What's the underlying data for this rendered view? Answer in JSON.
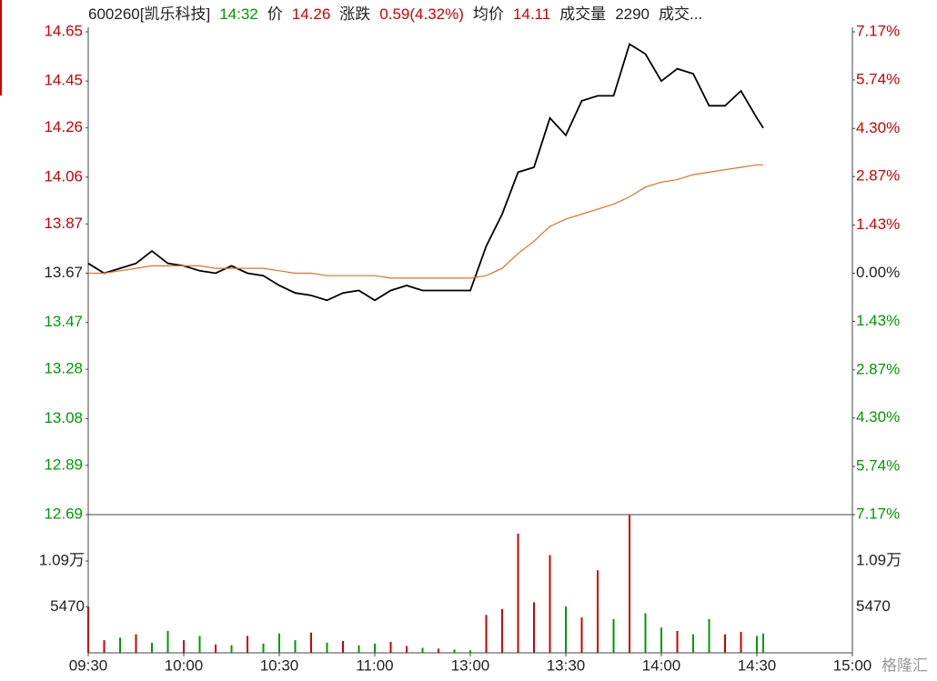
{
  "chart_data": {
    "type": "line",
    "header": [
      {
        "text": "600260[凯乐科技]",
        "color": "#222222"
      },
      {
        "text": "14:32",
        "color": "#009900"
      },
      {
        "text": "价",
        "color": "#222222"
      },
      {
        "text": "14.26",
        "color": "#cc0000"
      },
      {
        "text": "涨跌",
        "color": "#222222"
      },
      {
        "text": "0.59(4.32%)",
        "color": "#cc0000"
      },
      {
        "text": "均价",
        "color": "#222222"
      },
      {
        "text": "14.11",
        "color": "#cc0000"
      },
      {
        "text": "成交量",
        "color": "#222222"
      },
      {
        "text": "2290",
        "color": "#222222"
      },
      {
        "text": "成交...",
        "color": "#222222"
      }
    ],
    "x": [
      "09:30",
      "09:35",
      "09:40",
      "09:45",
      "09:50",
      "09:55",
      "10:00",
      "10:05",
      "10:10",
      "10:15",
      "10:20",
      "10:25",
      "10:30",
      "10:35",
      "10:40",
      "10:45",
      "10:50",
      "10:55",
      "11:00",
      "11:05",
      "11:10",
      "11:15",
      "11:20",
      "11:25",
      "11:30",
      "13:05",
      "13:10",
      "13:15",
      "13:20",
      "13:25",
      "13:30",
      "13:35",
      "13:40",
      "13:45",
      "13:50",
      "13:55",
      "14:00",
      "14:05",
      "14:10",
      "14:15",
      "14:20",
      "14:25",
      "14:30",
      "14:32"
    ],
    "series": [
      {
        "color": "#000000",
        "values": [
          13.71,
          13.67,
          13.69,
          13.71,
          13.76,
          13.71,
          13.7,
          13.68,
          13.67,
          13.7,
          13.67,
          13.66,
          13.62,
          13.59,
          13.58,
          13.56,
          13.59,
          13.6,
          13.56,
          13.6,
          13.62,
          13.6,
          13.6,
          13.6,
          13.6,
          13.78,
          13.91,
          14.08,
          14.1,
          14.3,
          14.23,
          14.37,
          14.39,
          14.39,
          14.6,
          14.56,
          14.45,
          14.5,
          14.48,
          14.35,
          14.35,
          14.41,
          14.3,
          14.26
        ]
      },
      {
        "color": "#e07020",
        "values": [
          13.67,
          13.67,
          13.68,
          13.69,
          13.7,
          13.7,
          13.7,
          13.7,
          13.69,
          13.69,
          13.69,
          13.69,
          13.68,
          13.67,
          13.67,
          13.66,
          13.66,
          13.66,
          13.66,
          13.65,
          13.65,
          13.65,
          13.65,
          13.65,
          13.65,
          13.66,
          13.69,
          13.75,
          13.8,
          13.86,
          13.89,
          13.91,
          13.93,
          13.95,
          13.98,
          14.02,
          14.04,
          14.05,
          14.07,
          14.08,
          14.09,
          14.1,
          14.11,
          14.11
        ]
      }
    ],
    "xlim": [
      "09:30",
      "15:00"
    ],
    "xticks": [
      "09:30",
      "10:00",
      "10:30",
      "11:00",
      "13:00",
      "13:30",
      "14:00",
      "14:30",
      "15:00"
    ],
    "ylim": [
      12.69,
      14.65
    ],
    "yticks": [
      14.65,
      14.45,
      14.26,
      14.06,
      13.87,
      13.67,
      13.47,
      13.28,
      13.08,
      12.89,
      12.69
    ],
    "y2lim": [
      -7.17,
      7.17
    ],
    "y2ticks": [
      {
        "value": 7.17,
        "label": "7.17%"
      },
      {
        "value": 5.74,
        "label": "5.74%"
      },
      {
        "value": 4.3,
        "label": "4.30%"
      },
      {
        "value": 2.87,
        "label": "2.87%"
      },
      {
        "value": 1.43,
        "label": "1.43%"
      },
      {
        "value": 0,
        "label": "0.00%"
      },
      {
        "value": -1.43,
        "label": "1.43%"
      },
      {
        "value": -2.87,
        "label": "2.87%"
      },
      {
        "value": -4.3,
        "label": "4.30%"
      },
      {
        "value": -5.74,
        "label": "5.74%"
      },
      {
        "value": -7.17,
        "label": "7.17%"
      }
    ],
    "volume": {
      "values": [
        5470,
        1500,
        1800,
        2200,
        1200,
        2600,
        1500,
        2000,
        1000,
        900,
        2000,
        1100,
        2300,
        1500,
        2400,
        1200,
        1400,
        900,
        1100,
        1300,
        800,
        600,
        500,
        400,
        300,
        4500,
        5200,
        14150,
        6000,
        11600,
        5500,
        4200,
        9800,
        4000,
        16400,
        4700,
        3000,
        2600,
        2200,
        4000,
        2200,
        2500,
        2000,
        2290
      ],
      "colors": [
        "#cc0000",
        "#cc0000",
        "#009900",
        "#cc0000",
        "#009900",
        "#009900",
        "#cc0000",
        "#009900",
        "#cc0000",
        "#009900",
        "#cc0000",
        "#009900",
        "#009900",
        "#009900",
        "#cc0000",
        "#009900",
        "#cc0000",
        "#009900",
        "#009900",
        "#cc0000",
        "#cc0000",
        "#009900",
        "#cc0000",
        "#009900",
        "#009900",
        "#cc0000",
        "#cc0000",
        "#cc0000",
        "#cc0000",
        "#cc0000",
        "#009900",
        "#cc0000",
        "#cc0000",
        "#009900",
        "#cc0000",
        "#009900",
        "#009900",
        "#cc0000",
        "#009900",
        "#009900",
        "#cc0000",
        "#cc0000",
        "#009900",
        "#009900"
      ],
      "ylim": [
        0,
        16410
      ],
      "yticks": [
        {
          "value": 10900,
          "label": "1.09万"
        },
        5470
      ]
    },
    "watermark": "格隆汇"
  }
}
